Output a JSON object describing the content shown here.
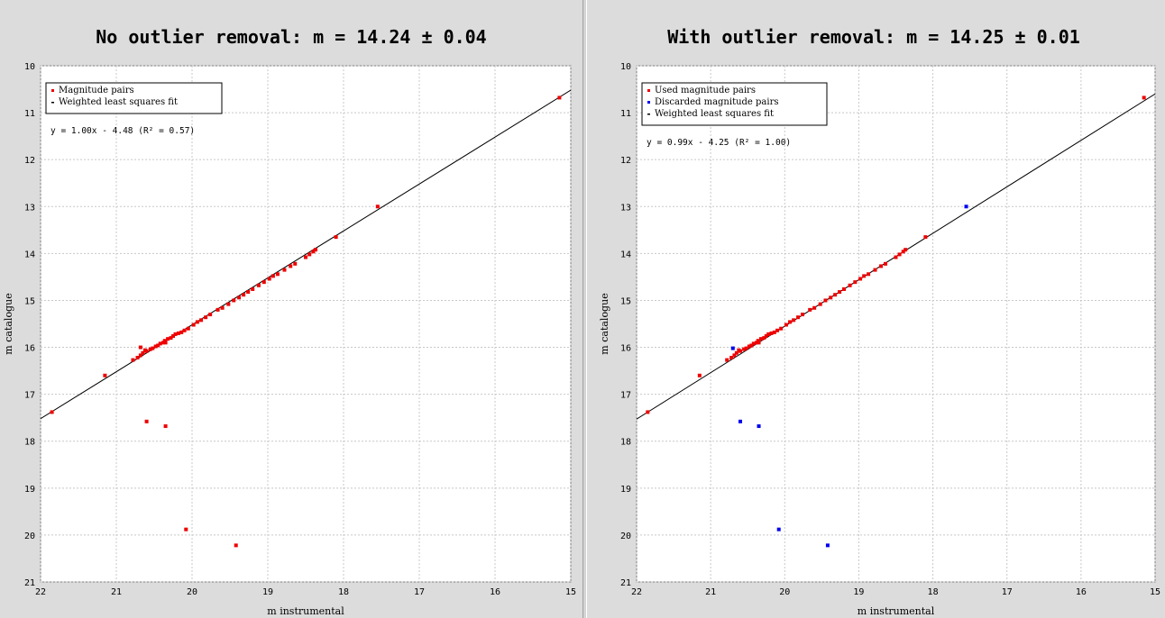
{
  "chart_data": [
    {
      "type": "scatter",
      "title": "No outlier removal: m = 14.24 ± 0.04",
      "xlabel": "m instrumental",
      "ylabel": "m catalogue",
      "xlim": [
        22,
        15
      ],
      "ylim": [
        21,
        10
      ],
      "x_ticks": [
        "22",
        "21",
        "20",
        "19",
        "18",
        "17",
        "16",
        "15"
      ],
      "y_ticks": [
        "10",
        "11",
        "12",
        "13",
        "14",
        "15",
        "16",
        "17",
        "18",
        "19",
        "20",
        "21"
      ],
      "grid": true,
      "legend_position": "top-left",
      "equation": "y = 1.00x - 4.48 (R² = 0.57)",
      "fit": {
        "name": "Weighted least squares fit",
        "slope": 1.0,
        "intercept": -4.48,
        "color": "#000000"
      },
      "series": [
        {
          "name": "Magnitude pairs",
          "color": "#ee0000",
          "points": [
            [
              21.85,
              17.38
            ],
            [
              21.15,
              16.6
            ],
            [
              20.78,
              16.27
            ],
            [
              20.72,
              16.22
            ],
            [
              20.68,
              16.17
            ],
            [
              20.65,
              16.12
            ],
            [
              20.6,
              16.08
            ],
            [
              20.55,
              16.04
            ],
            [
              20.52,
              16.02
            ],
            [
              20.48,
              15.98
            ],
            [
              20.45,
              15.96
            ],
            [
              20.42,
              15.92
            ],
            [
              20.38,
              15.9
            ],
            [
              20.36,
              15.86
            ],
            [
              20.32,
              15.82
            ],
            [
              20.28,
              15.8
            ],
            [
              20.25,
              15.76
            ],
            [
              20.22,
              15.72
            ],
            [
              20.18,
              15.7
            ],
            [
              20.14,
              15.68
            ],
            [
              20.1,
              15.64
            ],
            [
              20.05,
              15.6
            ],
            [
              19.98,
              15.52
            ],
            [
              19.93,
              15.46
            ],
            [
              19.88,
              15.42
            ],
            [
              19.82,
              15.36
            ],
            [
              19.76,
              15.3
            ],
            [
              19.66,
              15.2
            ],
            [
              19.6,
              15.16
            ],
            [
              19.52,
              15.08
            ],
            [
              19.45,
              15.0
            ],
            [
              19.38,
              14.94
            ],
            [
              19.32,
              14.88
            ],
            [
              19.26,
              14.82
            ],
            [
              19.2,
              14.76
            ],
            [
              19.12,
              14.68
            ],
            [
              19.05,
              14.61
            ],
            [
              18.98,
              14.54
            ],
            [
              18.93,
              14.48
            ],
            [
              18.87,
              14.44
            ],
            [
              18.78,
              14.35
            ],
            [
              18.7,
              14.27
            ],
            [
              18.64,
              14.22
            ],
            [
              18.5,
              14.08
            ],
            [
              18.45,
              14.02
            ],
            [
              18.4,
              13.96
            ],
            [
              18.37,
              13.92
            ],
            [
              18.1,
              13.65
            ],
            [
              17.55,
              13.0
            ],
            [
              15.15,
              10.68
            ],
            [
              20.68,
              16.0
            ],
            [
              20.62,
              16.06
            ],
            [
              20.35,
              15.9
            ],
            [
              20.6,
              17.58
            ],
            [
              20.35,
              17.68
            ],
            [
              20.08,
              19.88
            ],
            [
              19.42,
              20.22
            ]
          ]
        }
      ]
    },
    {
      "type": "scatter",
      "title": "With outlier removal: m = 14.25 ± 0.01",
      "xlabel": "m instrumental",
      "ylabel": "m catalogue",
      "xlim": [
        22,
        15
      ],
      "ylim": [
        21,
        10
      ],
      "x_ticks": [
        "22",
        "21",
        "20",
        "19",
        "18",
        "17",
        "16",
        "15"
      ],
      "y_ticks": [
        "10",
        "11",
        "12",
        "13",
        "14",
        "15",
        "16",
        "17",
        "18",
        "19",
        "20",
        "21"
      ],
      "grid": true,
      "legend_position": "top-left",
      "equation": "y = 0.99x - 4.25 (R² = 1.00)",
      "fit": {
        "name": "Weighted least squares fit",
        "slope": 0.99,
        "intercept": -4.25,
        "color": "#000000"
      },
      "series": [
        {
          "name": "Used magnitude pairs",
          "color": "#ee0000",
          "points": [
            [
              21.85,
              17.38
            ],
            [
              21.15,
              16.6
            ],
            [
              20.78,
              16.27
            ],
            [
              20.72,
              16.22
            ],
            [
              20.68,
              16.17
            ],
            [
              20.65,
              16.12
            ],
            [
              20.6,
              16.08
            ],
            [
              20.55,
              16.04
            ],
            [
              20.52,
              16.02
            ],
            [
              20.48,
              15.98
            ],
            [
              20.45,
              15.96
            ],
            [
              20.42,
              15.92
            ],
            [
              20.38,
              15.9
            ],
            [
              20.36,
              15.86
            ],
            [
              20.32,
              15.82
            ],
            [
              20.28,
              15.8
            ],
            [
              20.25,
              15.76
            ],
            [
              20.22,
              15.72
            ],
            [
              20.18,
              15.7
            ],
            [
              20.14,
              15.68
            ],
            [
              20.1,
              15.64
            ],
            [
              20.05,
              15.6
            ],
            [
              19.98,
              15.52
            ],
            [
              19.93,
              15.46
            ],
            [
              19.88,
              15.42
            ],
            [
              19.82,
              15.36
            ],
            [
              19.76,
              15.3
            ],
            [
              19.66,
              15.2
            ],
            [
              19.6,
              15.16
            ],
            [
              19.52,
              15.08
            ],
            [
              19.45,
              15.0
            ],
            [
              19.38,
              14.94
            ],
            [
              19.32,
              14.88
            ],
            [
              19.26,
              14.82
            ],
            [
              19.2,
              14.76
            ],
            [
              19.12,
              14.68
            ],
            [
              19.05,
              14.61
            ],
            [
              18.98,
              14.54
            ],
            [
              18.93,
              14.48
            ],
            [
              18.87,
              14.44
            ],
            [
              18.78,
              14.35
            ],
            [
              18.7,
              14.27
            ],
            [
              18.64,
              14.22
            ],
            [
              18.5,
              14.08
            ],
            [
              18.45,
              14.02
            ],
            [
              18.4,
              13.96
            ],
            [
              18.37,
              13.92
            ],
            [
              18.1,
              13.65
            ],
            [
              15.15,
              10.68
            ],
            [
              20.35,
              15.9
            ],
            [
              20.62,
              16.06
            ]
          ]
        },
        {
          "name": "Discarded magnitude pairs",
          "color": "#0000ee",
          "points": [
            [
              20.7,
              16.02
            ],
            [
              20.6,
              17.58
            ],
            [
              20.35,
              17.68
            ],
            [
              20.08,
              19.88
            ],
            [
              19.42,
              20.22
            ],
            [
              17.55,
              13.0
            ]
          ]
        }
      ]
    }
  ]
}
